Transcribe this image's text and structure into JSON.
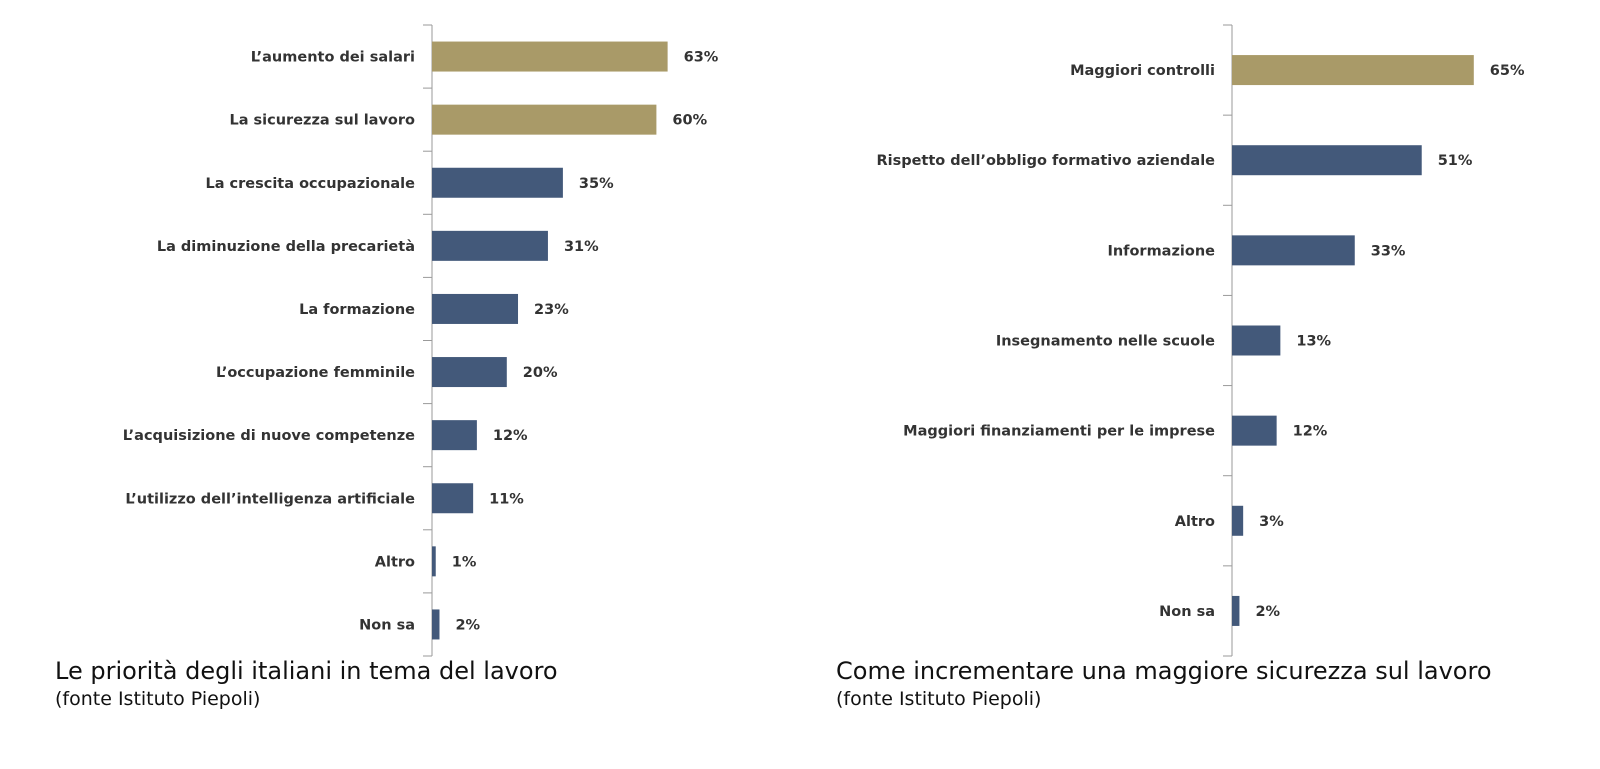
{
  "colors": {
    "highlight": "#a99a68",
    "bar": "#43597a",
    "axis": "#9a9a9a"
  },
  "chart_data": [
    {
      "type": "bar",
      "orientation": "horizontal",
      "title": "Le priorità degli italiani in tema del lavoro",
      "subtitle": "(fonte Istituto Piepoli)",
      "categories": [
        "L’aumento dei salari",
        "La sicurezza sul lavoro",
        "La crescita occupazionale",
        "La diminuzione della precarietà",
        "La formazione",
        "L’occupazione femminile",
        "L’acquisizione di nuove competenze",
        "L’utilizzo dell’intelligenza artificiale",
        "Altro",
        "Non sa"
      ],
      "values": [
        63,
        60,
        35,
        31,
        23,
        20,
        12,
        11,
        1,
        2
      ],
      "value_labels": [
        "63%",
        "60%",
        "35%",
        "31%",
        "23%",
        "20%",
        "12%",
        "11%",
        "1%",
        "2%"
      ],
      "highlighted": [
        0,
        1
      ],
      "unit": "%"
    },
    {
      "type": "bar",
      "orientation": "horizontal",
      "title": "Come incrementare una maggiore sicurezza sul lavoro",
      "subtitle": "(fonte Istituto Piepoli)",
      "categories": [
        "Maggiori controlli",
        "Rispetto dell’obbligo formativo aziendale",
        "Informazione",
        "Insegnamento nelle scuole",
        "Maggiori finanziamenti per le imprese",
        "Altro",
        "Non sa"
      ],
      "values": [
        65,
        51,
        33,
        13,
        12,
        3,
        2
      ],
      "value_labels": [
        "65%",
        "51%",
        "33%",
        "13%",
        "12%",
        "3%",
        "2%"
      ],
      "highlighted": [
        0
      ],
      "unit": "%"
    }
  ]
}
